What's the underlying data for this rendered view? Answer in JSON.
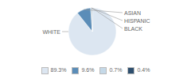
{
  "chart_data": {
    "type": "pie",
    "categories": [
      "WHITE",
      "ASIAN",
      "HISPANIC",
      "BLACK"
    ],
    "values": [
      89.3,
      9.6,
      0.7,
      0.4
    ],
    "value_labels": [
      "89.3%",
      "9.6%",
      "0.7%",
      "0.4%"
    ],
    "colors": [
      "#dce6f1",
      "#5b8db8",
      "#c5d9e8",
      "#2e4f6e"
    ],
    "legend": "bottom"
  }
}
